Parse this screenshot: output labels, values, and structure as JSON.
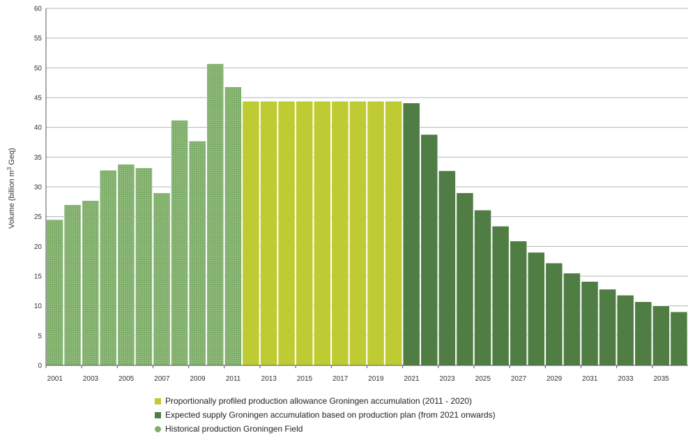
{
  "chart_data": {
    "type": "bar",
    "ylabel": "Volume (billion m3 Geq)",
    "ylabel_parts": [
      "Volume (billion m",
      "3",
      " Geq)"
    ],
    "ylim": [
      0,
      60
    ],
    "yticks": [
      0,
      5,
      10,
      15,
      20,
      25,
      30,
      35,
      40,
      45,
      50,
      55,
      60
    ],
    "grid": true,
    "legend_position": "bottom",
    "x": [
      2001,
      2002,
      2003,
      2004,
      2005,
      2006,
      2007,
      2008,
      2009,
      2010,
      2011,
      2012,
      2013,
      2014,
      2015,
      2016,
      2017,
      2018,
      2019,
      2020,
      2021,
      2022,
      2023,
      2024,
      2025,
      2026,
      2027,
      2028,
      2029,
      2030,
      2031,
      2032,
      2033,
      2034,
      2035,
      2036
    ],
    "xtick_labels": [
      "2001",
      "2003",
      "2005",
      "2007",
      "2009",
      "2011",
      "2013",
      "2015",
      "2017",
      "2019",
      "2021",
      "2023",
      "2025",
      "2027",
      "2029",
      "2031",
      "2033",
      "2035"
    ],
    "series": [
      {
        "name": "Historical production Groningen Field",
        "color": "#7fae6a",
        "x": [
          2001,
          2002,
          2003,
          2004,
          2005,
          2006,
          2007,
          2008,
          2009,
          2010,
          2011
        ],
        "values": [
          24.5,
          27.0,
          27.7,
          32.8,
          33.8,
          33.2,
          29.0,
          41.2,
          37.7,
          50.7,
          46.8
        ]
      },
      {
        "name": "Proportionally profiled production allowance Groningen accumulation (2011 - 2020)",
        "color": "#bfcb32",
        "x": [
          2012,
          2013,
          2014,
          2015,
          2016,
          2017,
          2018,
          2019,
          2020
        ],
        "values": [
          44.4,
          44.4,
          44.4,
          44.4,
          44.4,
          44.4,
          44.4,
          44.4,
          44.4
        ]
      },
      {
        "name": "Expected supply Groningen accumulation based on production plan (from 2021 onwards)",
        "color": "#4f7d44",
        "x": [
          2021,
          2022,
          2023,
          2024,
          2025,
          2026,
          2027,
          2028,
          2029,
          2030,
          2031,
          2032,
          2033,
          2034,
          2035,
          2036
        ],
        "values": [
          44.1,
          38.8,
          32.7,
          29.0,
          26.1,
          23.4,
          20.9,
          19.0,
          17.2,
          15.5,
          14.1,
          12.8,
          11.8,
          10.7,
          10.0,
          9.0
        ]
      }
    ]
  },
  "legend": {
    "items": [
      {
        "key": "allowance",
        "label": "Proportionally profiled production allowance Groningen accumulation (2011 - 2020)",
        "color": "#bfcb32"
      },
      {
        "key": "expected",
        "label": "Expected supply Groningen accumulation based on production plan (from 2021 onwards)",
        "color": "#4f7d44"
      },
      {
        "key": "historical",
        "label": "Historical production Groningen Field",
        "color": "#7fae6a"
      }
    ]
  }
}
